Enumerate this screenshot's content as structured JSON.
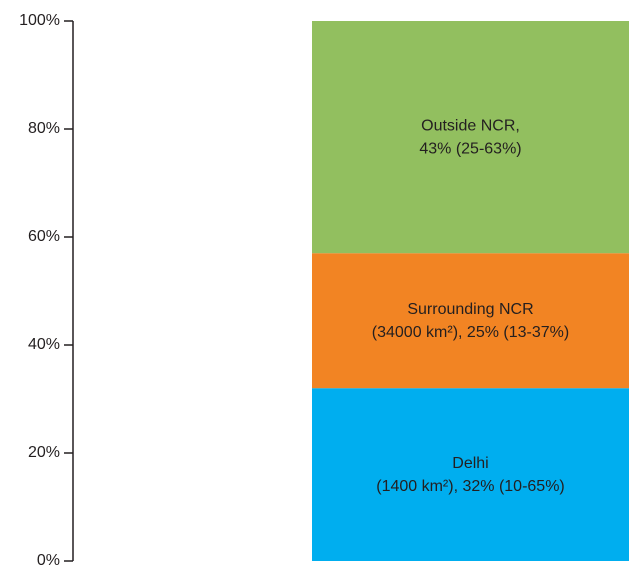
{
  "chart_data": {
    "type": "stacked-bar",
    "categories": [
      null
    ],
    "series": [
      {
        "name": "Delhi",
        "color": "#00aeef",
        "values": [
          32
        ],
        "value_labels": [
          "(1400 km²), 32% (10-65%)"
        ]
      },
      {
        "name": "Surrounding NCR",
        "color": "#f28423",
        "values": [
          25
        ],
        "value_labels": [
          "(34000 km²), 25% (13-37%)"
        ]
      },
      {
        "name": "Outside NCR,",
        "color": "#92bf5f",
        "values": [
          43
        ],
        "value_labels": [
          "43% (25-63%)"
        ]
      }
    ],
    "ylim": [
      0,
      100
    ],
    "yticks": [
      {
        "value": 0,
        "label": "0%"
      },
      {
        "value": 20,
        "label": "20%"
      },
      {
        "value": 40,
        "label": "40%"
      },
      {
        "value": 60,
        "label": "60%"
      },
      {
        "value": 80,
        "label": "80%"
      },
      {
        "value": 100,
        "label": "100%"
      }
    ]
  }
}
